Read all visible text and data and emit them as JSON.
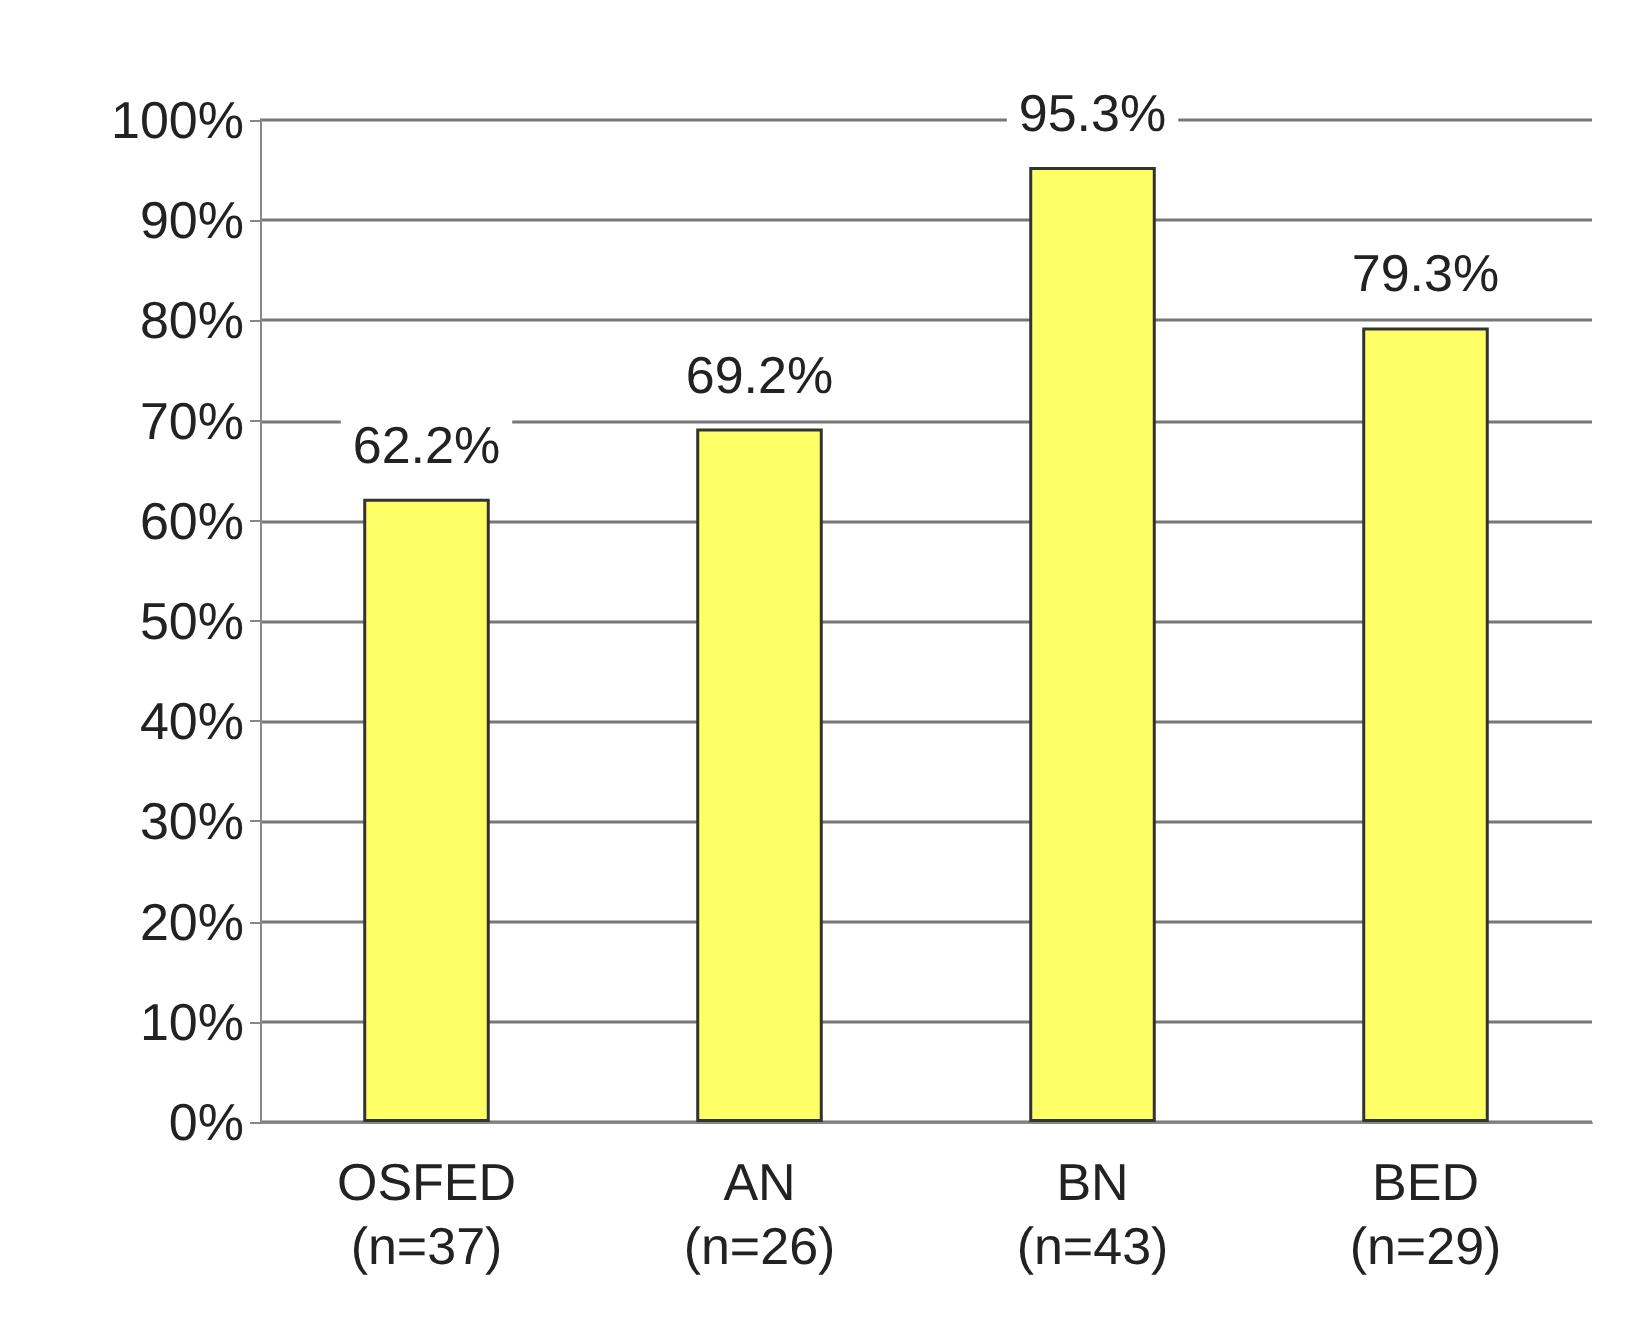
{
  "chart_data": {
    "type": "bar",
    "categories": [
      "OSFED\n(n=37)",
      "AN\n(n=26)",
      "BN\n(n=43)",
      "BED\n(n=29)"
    ],
    "values": [
      62.2,
      69.2,
      95.3,
      79.3
    ],
    "color": "#ffff66",
    "value_labels": [
      "62.2%",
      "69.2%",
      "95.3%",
      "79.3%"
    ],
    "ylim": [
      0,
      100
    ],
    "yticks": [
      {
        "value": 0,
        "label": "0%"
      },
      {
        "value": 10,
        "label": "10%"
      },
      {
        "value": 20,
        "label": "20%"
      },
      {
        "value": 30,
        "label": "30%"
      },
      {
        "value": 40,
        "label": "40%"
      },
      {
        "value": 50,
        "label": "50%"
      },
      {
        "value": 60,
        "label": "60%"
      },
      {
        "value": 70,
        "label": "70%"
      },
      {
        "value": 80,
        "label": "80%"
      },
      {
        "value": 90,
        "label": "90%"
      },
      {
        "value": 100,
        "label": "100%"
      }
    ],
    "grid": "y"
  }
}
